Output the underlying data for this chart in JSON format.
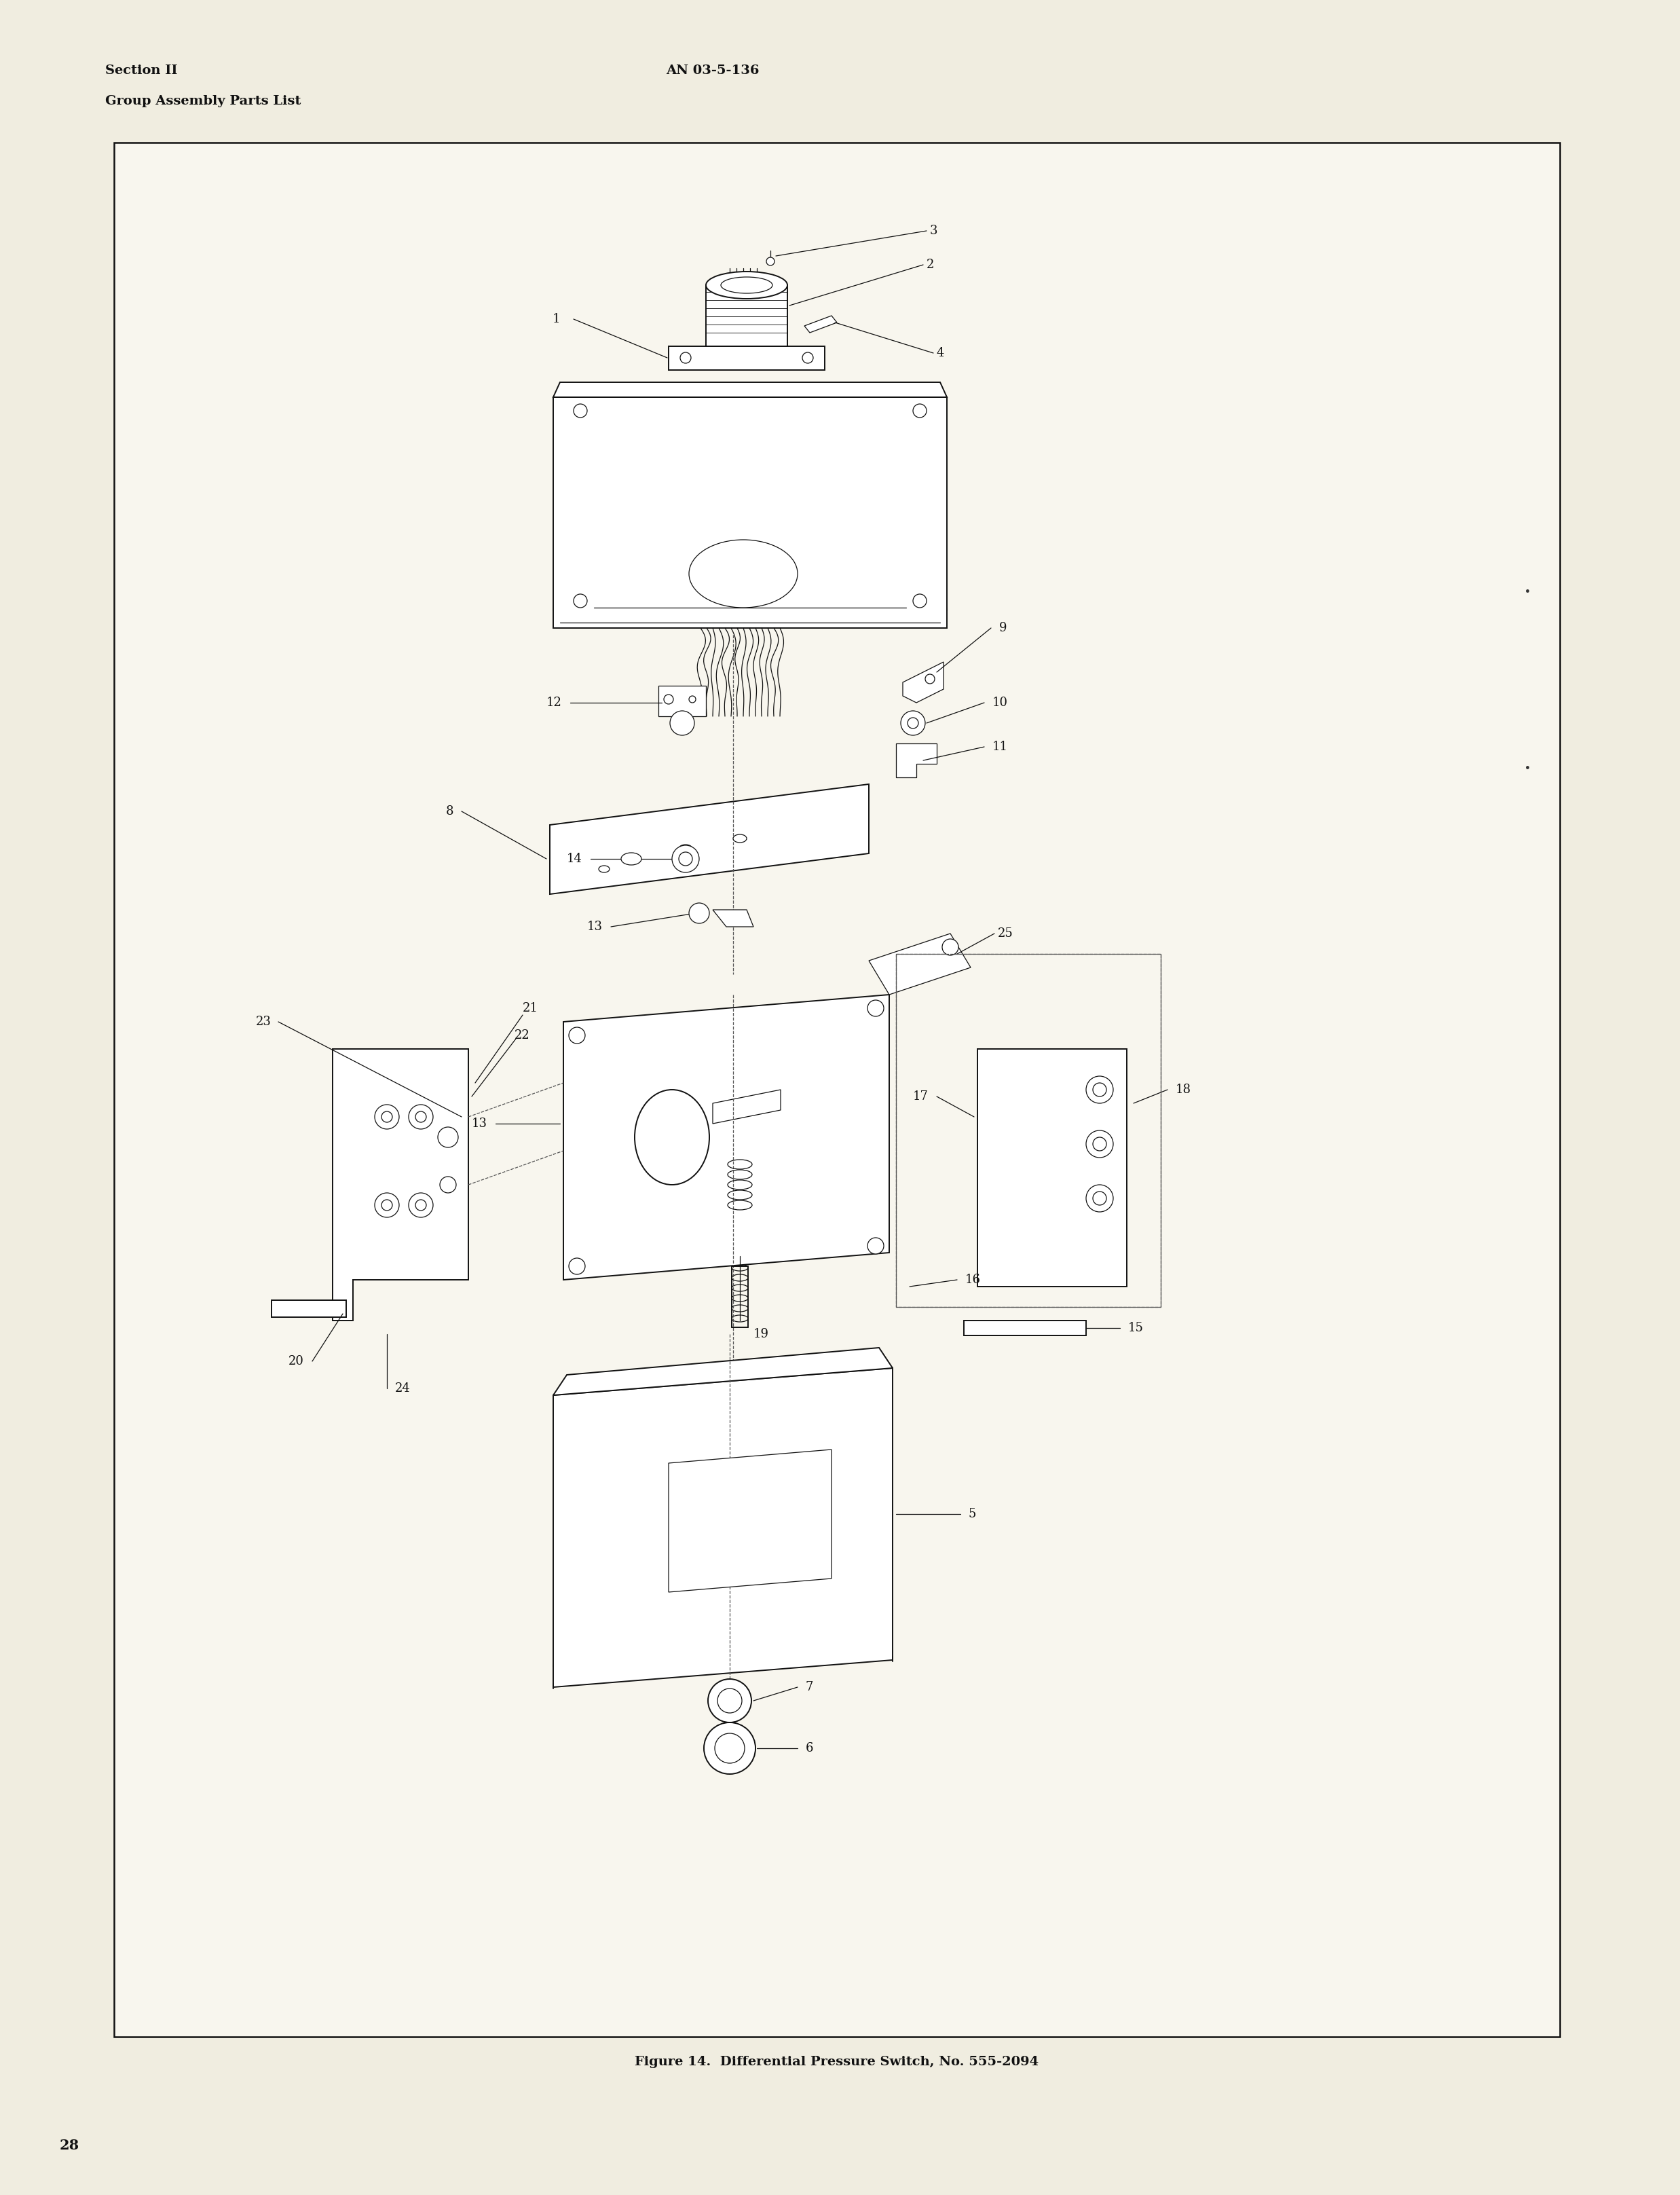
{
  "page_bg_color": "#f0ede0",
  "inner_bg_color": "#f8f6ee",
  "header_left_line1": "Section II",
  "header_left_line2": "Group Assembly Parts List",
  "header_center": "AN 03-5-136",
  "page_number": "28",
  "figure_caption": "Figure 14.  Differential Pressure Switch, No. 555-2094",
  "header_fontsize": 14,
  "caption_fontsize": 14,
  "page_num_fontsize": 15,
  "label_fontsize": 13,
  "text_color": "#111111",
  "line_color": "#111111",
  "border_lw": 1.8,
  "draw_lw": 1.4,
  "thin_lw": 0.9
}
